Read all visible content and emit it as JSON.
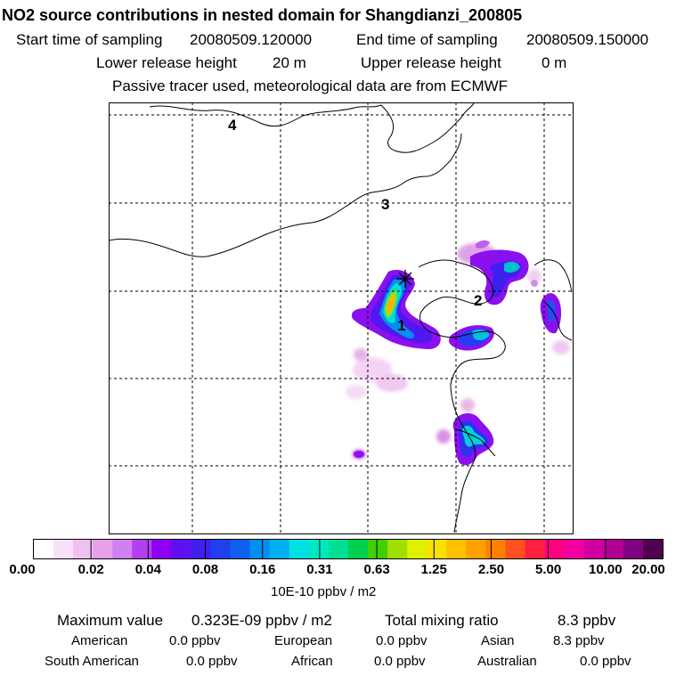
{
  "title": "NO2 source contributions in nested domain for Shangdianzi_200805",
  "header": {
    "start_label": "Start time of sampling",
    "start_value": "20080509.120000",
    "end_label": "End time of sampling",
    "end_value": "20080509.150000",
    "lower_label": "Lower release height",
    "lower_value": "20 m",
    "upper_label": "Upper release height",
    "upper_value": "0 m",
    "note": "Passive tracer used, meteorological data are from ECMWF"
  },
  "map": {
    "region_labels": [
      "1",
      "2",
      "3",
      "4"
    ],
    "receptor_marker": "asterisk"
  },
  "colorbar": {
    "ticks": [
      "0.00",
      "0.02",
      "0.04",
      "0.08",
      "0.16",
      "0.31",
      "0.63",
      "1.25",
      "2.50",
      "5.00",
      "10.00",
      "20.00"
    ],
    "colors": [
      "#ffffff",
      "#f8e0f8",
      "#f0c0f0",
      "#e8a0e8",
      "#d080f0",
      "#b040f0",
      "#9000f0",
      "#6010f0",
      "#4020f0",
      "#2040f0",
      "#1060f0",
      "#0090f0",
      "#00b0f0",
      "#00e0e0",
      "#00e8c0",
      "#00e090",
      "#00d050",
      "#40d000",
      "#a0e000",
      "#e0f000",
      "#f8e000",
      "#ffc000",
      "#ffa000",
      "#ff8000",
      "#ff5020",
      "#ff2040",
      "#ff0080",
      "#f000a0",
      "#d000a0",
      "#b00090",
      "#800080",
      "#500050"
    ],
    "unit": "10E-10 ppbv / m2"
  },
  "footer": {
    "max_label": "Maximum value",
    "max_value": "0.323E-09 ppbv / m2",
    "total_label": "Total mixing ratio",
    "total_value": "8.3 ppbv",
    "sources": [
      {
        "name": "American",
        "value": "0.0 ppbv"
      },
      {
        "name": "European",
        "value": "0.0 ppbv"
      },
      {
        "name": "Asian",
        "value": "8.3 ppbv"
      },
      {
        "name": "South American",
        "value": "0.0 ppbv"
      },
      {
        "name": "African",
        "value": "0.0 ppbv"
      },
      {
        "name": "Australian",
        "value": "0.0 ppbv"
      }
    ]
  }
}
